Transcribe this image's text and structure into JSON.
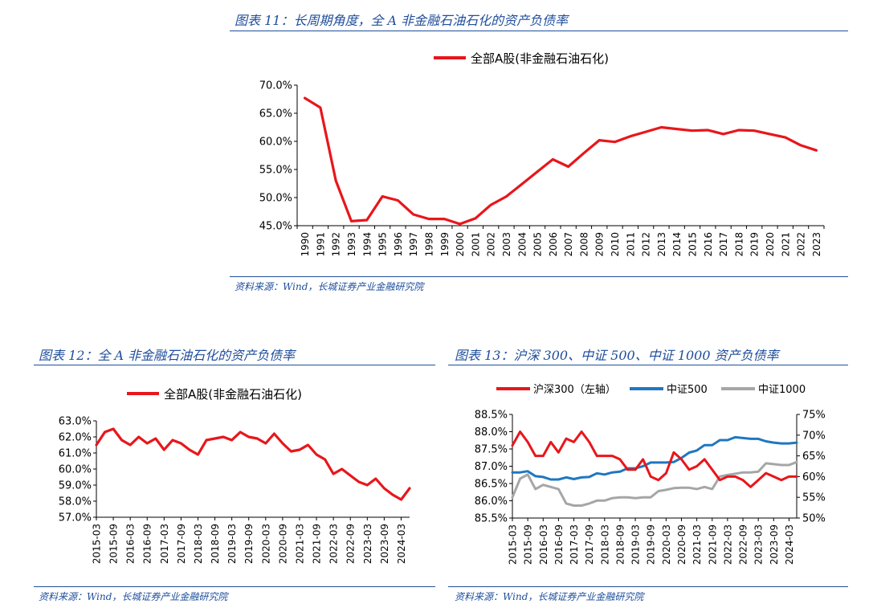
{
  "figures": {
    "fig11": {
      "caption": "图表 11：长周期角度，全 A 非金融石油石化的资产负债率",
      "source": "资料来源：Wind，长城证券产业金融研究院"
    },
    "fig12": {
      "caption": "图表 12：全 A 非金融石油石化的资产负债率",
      "source": "资料来源：Wind，长城证券产业金融研究院"
    },
    "fig13": {
      "caption": "图表 13：沪深 300、中证 500、中证 1000 资产负债率",
      "source": "资料来源：Wind，长城证券产业金融研究院"
    }
  },
  "colors": {
    "red": "#e8161b",
    "blue": "#1f77c0",
    "gray": "#a6a6a6",
    "caption": "#1f4e9c"
  },
  "chart_data": [
    {
      "id": "fig11",
      "type": "line",
      "x": [
        "1990",
        "1991",
        "1992",
        "1993",
        "1994",
        "1995",
        "1996",
        "1997",
        "1998",
        "1999",
        "2000",
        "2001",
        "2002",
        "2003",
        "2004",
        "2005",
        "2006",
        "2007",
        "2008",
        "2009",
        "2010",
        "2011",
        "2012",
        "2013",
        "2014",
        "2015",
        "2016",
        "2017",
        "2018",
        "2019",
        "2020",
        "2021",
        "2022",
        "2023"
      ],
      "y_ticks": [
        "45.0%",
        "50.0%",
        "55.0%",
        "60.0%",
        "65.0%",
        "70.0%"
      ],
      "ylim": [
        45,
        70
      ],
      "legend_position": "top",
      "grid": false,
      "series": [
        {
          "name": "全部A股(非金融石油石化)",
          "color": "#e8161b",
          "values": [
            67.7,
            66.0,
            53.0,
            45.8,
            46.0,
            50.2,
            49.5,
            47.0,
            46.2,
            46.2,
            45.3,
            46.3,
            48.7,
            50.2,
            52.4,
            54.6,
            56.8,
            55.5,
            57.9,
            60.2,
            59.9,
            60.9,
            61.7,
            62.5,
            62.2,
            61.9,
            62.0,
            61.3,
            62.0,
            61.9,
            61.3,
            60.7,
            59.3,
            58.4
          ]
        }
      ]
    },
    {
      "id": "fig12",
      "type": "line",
      "x": [
        "2015-03",
        "2015-06",
        "2015-09",
        "2015-12",
        "2016-03",
        "2016-06",
        "2016-09",
        "2016-12",
        "2017-03",
        "2017-06",
        "2017-09",
        "2017-12",
        "2018-03",
        "2018-06",
        "2018-09",
        "2018-12",
        "2019-03",
        "2019-06",
        "2019-09",
        "2019-12",
        "2020-03",
        "2020-06",
        "2020-09",
        "2020-12",
        "2021-03",
        "2021-06",
        "2021-09",
        "2021-12",
        "2022-03",
        "2022-06",
        "2022-09",
        "2022-12",
        "2023-03",
        "2023-06",
        "2023-09",
        "2023-12",
        "2024-03",
        "2024-06"
      ],
      "x_tick_labels": [
        "2015-03",
        "2015-09",
        "2016-03",
        "2016-09",
        "2017-03",
        "2017-09",
        "2018-03",
        "2018-09",
        "2019-03",
        "2019-09",
        "2020-03",
        "2020-09",
        "2021-03",
        "2021-09",
        "2022-03",
        "2022-09",
        "2023-03",
        "2023-09",
        "2024-03"
      ],
      "y_ticks": [
        "57.0%",
        "58.0%",
        "59.0%",
        "60.0%",
        "61.0%",
        "62.0%",
        "63.0%"
      ],
      "ylim": [
        57,
        63
      ],
      "legend_position": "top",
      "grid": false,
      "series": [
        {
          "name": "全部A股(非金融石油石化)",
          "color": "#e8161b",
          "values": [
            61.5,
            62.3,
            62.5,
            61.8,
            61.5,
            62.0,
            61.6,
            61.9,
            61.2,
            61.8,
            61.6,
            61.2,
            60.9,
            61.8,
            61.9,
            62.0,
            61.8,
            62.3,
            62.0,
            61.9,
            61.6,
            62.2,
            61.6,
            61.1,
            61.2,
            61.5,
            60.9,
            60.6,
            59.7,
            60.0,
            59.6,
            59.2,
            59.0,
            59.4,
            58.8,
            58.4,
            58.1,
            58.8
          ]
        }
      ]
    },
    {
      "id": "fig13",
      "type": "line",
      "x": [
        "2015-03",
        "2015-06",
        "2015-09",
        "2015-12",
        "2016-03",
        "2016-06",
        "2016-09",
        "2016-12",
        "2017-03",
        "2017-06",
        "2017-09",
        "2017-12",
        "2018-03",
        "2018-06",
        "2018-09",
        "2018-12",
        "2019-03",
        "2019-06",
        "2019-09",
        "2019-12",
        "2020-03",
        "2020-06",
        "2020-09",
        "2020-12",
        "2021-03",
        "2021-06",
        "2021-09",
        "2021-12",
        "2022-03",
        "2022-06",
        "2022-09",
        "2022-12",
        "2023-03",
        "2023-06",
        "2023-09",
        "2023-12",
        "2024-03",
        "2024-06"
      ],
      "x_tick_labels": [
        "2015-03",
        "2015-09",
        "2016-03",
        "2016-09",
        "2017-03",
        "2017-09",
        "2018-03",
        "2018-09",
        "2019-03",
        "2019-09",
        "2020-03",
        "2020-09",
        "2021-03",
        "2021-09",
        "2022-03",
        "2022-09",
        "2023-03",
        "2023-09",
        "2024-03"
      ],
      "y_left_ticks": [
        "85.5%",
        "86.0%",
        "86.5%",
        "87.0%",
        "87.5%",
        "88.0%",
        "88.5%"
      ],
      "ylim_left": [
        85.5,
        88.5
      ],
      "y_right_ticks": [
        "50%",
        "55%",
        "60%",
        "65%",
        "70%",
        "75%"
      ],
      "ylim_right": [
        50,
        75
      ],
      "legend_position": "top",
      "grid": false,
      "series": [
        {
          "name": "沪深300（左轴）",
          "axis": "left",
          "color": "#e8161b",
          "values": [
            87.6,
            88.0,
            87.7,
            87.3,
            87.3,
            87.7,
            87.4,
            87.8,
            87.7,
            88.0,
            87.7,
            87.3,
            87.3,
            87.3,
            87.2,
            86.9,
            86.9,
            87.2,
            86.7,
            86.6,
            86.8,
            87.4,
            87.2,
            86.9,
            87.0,
            87.2,
            86.9,
            86.6,
            86.7,
            86.7,
            86.6,
            86.4,
            86.6,
            86.8,
            86.7,
            86.6,
            86.7,
            86.7
          ]
        },
        {
          "name": "中证500",
          "axis": "right",
          "color": "#1f77c0",
          "values": [
            61.0,
            61.0,
            61.3,
            60.1,
            59.9,
            59.3,
            59.3,
            59.8,
            59.4,
            59.8,
            59.9,
            60.8,
            60.5,
            61.0,
            61.2,
            62.0,
            62.0,
            62.5,
            63.4,
            63.4,
            63.4,
            63.5,
            64.5,
            65.8,
            66.3,
            67.6,
            67.6,
            68.8,
            68.8,
            69.5,
            69.3,
            69.1,
            69.1,
            68.5,
            68.2,
            68.0,
            68.0,
            68.2
          ]
        },
        {
          "name": "中证1000",
          "axis": "right",
          "color": "#a6a6a6",
          "values": [
            55.0,
            59.5,
            60.5,
            57.0,
            58.0,
            57.5,
            57.0,
            53.5,
            53.0,
            53.0,
            53.5,
            54.2,
            54.2,
            54.8,
            55.0,
            55.0,
            54.8,
            55.0,
            55.0,
            56.5,
            56.8,
            57.2,
            57.3,
            57.3,
            57.0,
            57.5,
            57.0,
            60.0,
            60.4,
            60.7,
            61.0,
            61.0,
            61.2,
            63.2,
            63.0,
            62.8,
            62.8,
            63.5
          ]
        }
      ]
    }
  ]
}
